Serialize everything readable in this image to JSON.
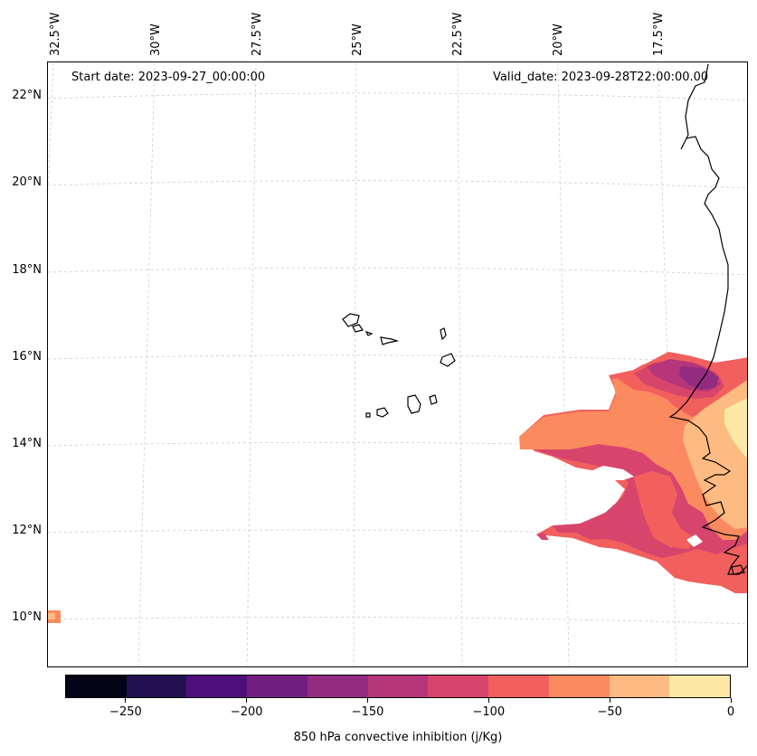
{
  "header": {
    "start_date": "Start date: 2023-09-27_00:00:00",
    "valid_date": "Valid_date: 2023-09-28T22:00:00.00"
  },
  "axes": {
    "longitude_labels": [
      "32.5°W",
      "30°W",
      "27.5°W",
      "25°W",
      "22.5°W",
      "20°W",
      "17.5°W"
    ],
    "latitude_labels": [
      "22°N",
      "20°N",
      "18°N",
      "16°N",
      "14°N",
      "12°N",
      "10°N"
    ]
  },
  "colorbar": {
    "title": "850 hPa convective inhibition (j/Kg)",
    "tick_labels": [
      "−250",
      "−200",
      "−150",
      "−100",
      "−50",
      "0"
    ],
    "levels": [
      -275,
      -250,
      -225,
      -200,
      -175,
      -150,
      -125,
      -100,
      -75,
      -50,
      -25,
      0
    ],
    "colors": [
      "#050416",
      "#221150",
      "#4f0f7b",
      "#721f81",
      "#932b80",
      "#b5367a",
      "#d8456c",
      "#f1605d",
      "#fc8a5f",
      "#febb81",
      "#fde9a5"
    ]
  }
}
